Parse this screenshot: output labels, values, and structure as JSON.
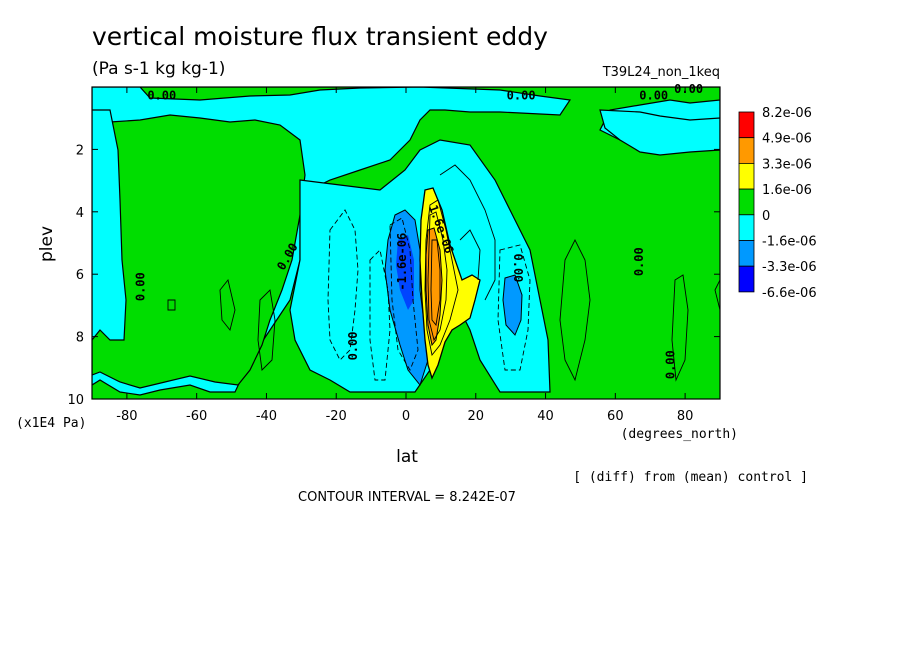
{
  "chart_data": {
    "type": "heatmap",
    "title": "vertical moisture flux transient eddy",
    "subtitle": "(Pa s-1 kg kg-1)",
    "run_label": "T39L24_non_1keq",
    "xlabel": "lat",
    "xunit": "(degrees_north)",
    "ylabel": "plev",
    "yunit": "(x1E4 Pa)",
    "xlim": [
      -90,
      90
    ],
    "ylim": [
      10,
      0
    ],
    "x_ticks": [
      -80,
      -60,
      -40,
      -20,
      0,
      20,
      40,
      60,
      80
    ],
    "x_tick_labels": [
      "-80",
      "-60",
      "-40",
      "-20",
      "0",
      "20",
      "40",
      "60",
      "80"
    ],
    "y_ticks": [
      2,
      4,
      6,
      8,
      10
    ],
    "y_tick_labels": [
      "2",
      "4",
      "6",
      "8",
      "10"
    ],
    "note": "[ (diff) from (mean) control ]",
    "contour_interval": "CONTOUR INTERVAL = 8.242E-07",
    "legend": {
      "levels": [
        "8.2e-06",
        "4.9e-06",
        "3.3e-06",
        "1.6e-06",
        "0",
        "-1.6e-06",
        "-3.3e-06",
        "-6.6e-06"
      ],
      "colors": [
        "#ff0000",
        "#ff9900",
        "#ffff00",
        "#00dd00",
        "#00ffff",
        "#0099ff",
        "#0000ff"
      ]
    },
    "contour_labels": [
      {
        "text": "0.00",
        "x": -70,
        "y": 0.4,
        "rotate": 0
      },
      {
        "text": "0.00",
        "x": 33,
        "y": 0.4,
        "rotate": 0
      },
      {
        "text": "0.00",
        "x": 71,
        "y": 0.4,
        "rotate": 0
      },
      {
        "text": "0.00",
        "x": 81,
        "y": 0.2,
        "rotate": 0
      },
      {
        "text": "0.00",
        "x": -33,
        "y": 5.5,
        "rotate": -60
      },
      {
        "text": "0.00",
        "x": -75,
        "y": 6.4,
        "rotate": -90
      },
      {
        "text": "0.00",
        "x": -14,
        "y": 8.3,
        "rotate": -90
      },
      {
        "text": "0.00",
        "x": 31,
        "y": 5.8,
        "rotate": 90
      },
      {
        "text": "0.00",
        "x": 68,
        "y": 5.6,
        "rotate": -90
      },
      {
        "text": "0.00",
        "x": 77,
        "y": 8.9,
        "rotate": -90
      },
      {
        "text": "-1.6e-06",
        "x": 0,
        "y": 5.6,
        "rotate": -90
      },
      {
        "text": "1.6e-06",
        "x": 9,
        "y": 4.6,
        "rotate": 70
      }
    ],
    "regions": [
      {
        "level": "negative",
        "color": "#00ffff",
        "desc": "cyan band -90..-75 and around equator"
      },
      {
        "level": "strong-negative",
        "color": "#0099ff",
        "lat": [
          -7,
          3
        ],
        "plev": [
          4.5,
          8
        ]
      },
      {
        "level": "strong-negative",
        "color": "#0099ff",
        "lat": [
          27,
          33
        ],
        "plev": [
          6,
          7.8
        ]
      },
      {
        "level": "positive",
        "color": "#ffff00",
        "lat": [
          5,
          20
        ],
        "plev": [
          3.5,
          8.5
        ]
      },
      {
        "level": "strong-positive",
        "color": "#ff9900",
        "lat": [
          7,
          10
        ],
        "plev": [
          5.5,
          7.5
        ]
      }
    ]
  }
}
